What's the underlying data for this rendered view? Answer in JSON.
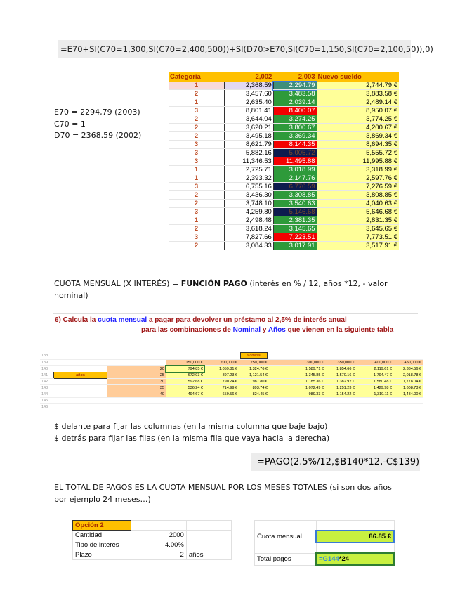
{
  "formula_top": "=E70+SI(C70=1,300,SI(C70=2,400,500))+SI(D70>E70,SI(C70=1,150,SI(C70=2,100,50)),0)",
  "notes_left": [
    "E70 = 2294,79 (2003)",
    "C70 = 1",
    "D70 = 2368.59 (2002)"
  ],
  "salary_table": {
    "headers": [
      "Categoria",
      "2,002",
      "2,003",
      "Nuevo sueldo"
    ],
    "rows": [
      [
        "1",
        "2,368.59",
        "2,294.79",
        "2,744.79 €",
        "sel"
      ],
      [
        "2",
        "3,457.60",
        "3,483.58",
        "3,883.58 €",
        "g"
      ],
      [
        "1",
        "2,635.40",
        "2,039.14",
        "2,489.14 €",
        "g"
      ],
      [
        "3",
        "8,801.41",
        "8,400.07",
        "8,950.07 €",
        "r"
      ],
      [
        "2",
        "3,644.04",
        "3,274.25",
        "3,774.25 €",
        "g"
      ],
      [
        "2",
        "3,620.21",
        "3,800.67",
        "4,200.67 €",
        "g"
      ],
      [
        "2",
        "3,495.18",
        "3,369.34",
        "3,869.34 €",
        "g"
      ],
      [
        "3",
        "8,621.79",
        "8,144.35",
        "8,694.35 €",
        "r"
      ],
      [
        "3",
        "5,882.16",
        "5,005.72",
        "5,555.72 €",
        "n"
      ],
      [
        "3",
        "11,346.53",
        "11,495.88",
        "11,995.88 €",
        "r"
      ],
      [
        "1",
        "2,725.71",
        "3,018.99",
        "3,318.99 €",
        "g"
      ],
      [
        "1",
        "2,393.32",
        "2,147.76",
        "2,597.76 €",
        "g"
      ],
      [
        "3",
        "6,755.16",
        "6,776.59",
        "7,276.59 €",
        "n"
      ],
      [
        "2",
        "3,436.30",
        "3,308.85",
        "3,808.85 €",
        "g"
      ],
      [
        "2",
        "3,748.10",
        "3,540.63",
        "4,040.63 €",
        "g"
      ],
      [
        "3",
        "4,259.80",
        "5,146.68",
        "5,646.68 €",
        "n"
      ],
      [
        "1",
        "2,498.48",
        "2,381.35",
        "2,831.35 €",
        "g"
      ],
      [
        "2",
        "3,618.24",
        "3,145.65",
        "3,645.65 €",
        "g"
      ],
      [
        "3",
        "7,827.66",
        "7,223.51",
        "7,773.51 €",
        "r"
      ],
      [
        "2",
        "3,084.33",
        "3,017.91",
        "3,517.91 €",
        "g"
      ]
    ]
  },
  "cuota_text": {
    "prefix": "CUOTA MENSUAL (X INTERÉS) = ",
    "bold": "FUNCIÓN PAGO",
    "suffix": " (interés en % / 12, años *12, - valor nominal)"
  },
  "instruction": {
    "l1a": "6) Calcula la ",
    "l1b": "cuota mensual",
    "l1c": " a pagar para devolver un préstamo al 2,5% de interés anual",
    "l2a": "para las  combinaciones de ",
    "l2b": "Nominal",
    "l2c": " y ",
    "l2d": "Años",
    "l2e": " que vienen en la siguiente tabla"
  },
  "loan_table": {
    "row_numbers": [
      "138",
      "139",
      "140",
      "141",
      "142",
      "143",
      "144",
      "145",
      "146"
    ],
    "nominal_label": "Nominal",
    "anos_label": "años",
    "nominals": [
      "150,000 €",
      "200,000 €",
      "250,000 €",
      "300,000 €",
      "350,000 €",
      "400,000 €",
      "450,000 €"
    ],
    "years": [
      "20",
      "25",
      "30",
      "35",
      "40"
    ],
    "values": [
      [
        "794.85 €",
        "1,059.81 €",
        "1,324.76 €",
        "1,589.71 €",
        "1,854.66 €",
        "2,119.61 €",
        "2,384.56 €"
      ],
      [
        "672.93 €",
        "897.23 €",
        "1,121.54 €",
        "1,345.85 €",
        "1,570.16 €",
        "1,794.47 €",
        "2,018.78 €"
      ],
      [
        "592.68 €",
        "790.24 €",
        "987.80 €",
        "1,185.36 €",
        "1,382.92 €",
        "1,580.48 €",
        "1,778.04 €"
      ],
      [
        "536.24 €",
        "714.99 €",
        "893.74 €",
        "1,072.49 €",
        "1,251.23 €",
        "1,429.98 €",
        "1,608.73 €"
      ],
      [
        "494.67 €",
        "659.56 €",
        "824.45 €",
        "989.33 €",
        "1,154.22 €",
        "1,319.11 €",
        "1,484.00 €"
      ]
    ]
  },
  "dollar_notes": [
    "$ delante para fijar las columnas (en la misma columna que baje bajo)",
    "$ detrás para fijar las filas (en la misma fila que vaya hacia la derecha)"
  ],
  "pago_formula": "=PAGO(2.5%/12,$B140*12,-C$139)",
  "total_text": "EL TOTAL DE PAGOS ES LA CUOTA MENSUAL POR LOS MESES TOTALES (si son dos años por ejemplo 24 meses…)",
  "option2": {
    "title": "Opción 2",
    "rows": [
      [
        "Cantidad",
        "2000",
        ""
      ],
      [
        "Tipo de interes",
        "4.00%",
        ""
      ],
      [
        "Plazo",
        "2",
        "años"
      ]
    ]
  },
  "result": {
    "cuota_label": "Cuota mensual",
    "cuota_value": "86.85 €",
    "total_label": "Total pagos",
    "total_ref": "=G144",
    "total_rest": "*24"
  }
}
